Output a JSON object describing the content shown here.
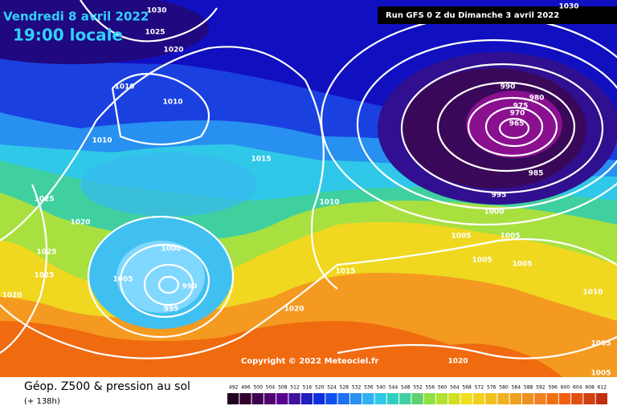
{
  "header": {
    "date": "Vendredi 8 avril 2022",
    "time": "19:00 locale",
    "run": "Run GFS 0 Z du Dimanche 3 avril 2022"
  },
  "copyright": "Copyright © 2022 Meteociel.fr",
  "footer": {
    "title": "Géop. Z500 & pression au sol",
    "lead": "(+ 138h)"
  },
  "isobar_labels": [
    "1030",
    "1025",
    "1020",
    "1010",
    "1010",
    "1010",
    "1015",
    "1025",
    "1020",
    "1025",
    "1025",
    "1020",
    "1000",
    "1005",
    "990",
    "995",
    "1010",
    "1015",
    "1020",
    "1030",
    "990",
    "980",
    "975",
    "970",
    "965",
    "985",
    "995",
    "1000",
    "1005",
    "1005",
    "1005",
    "1005",
    "1010",
    "1005",
    "1005",
    "1020"
  ],
  "scale": [
    492,
    496,
    500,
    504,
    508,
    512,
    516,
    520,
    524,
    528,
    532,
    536,
    540,
    544,
    548,
    552,
    556,
    560,
    564,
    568,
    572,
    576,
    580,
    584,
    588,
    592,
    596,
    600,
    604,
    608,
    612
  ]
}
